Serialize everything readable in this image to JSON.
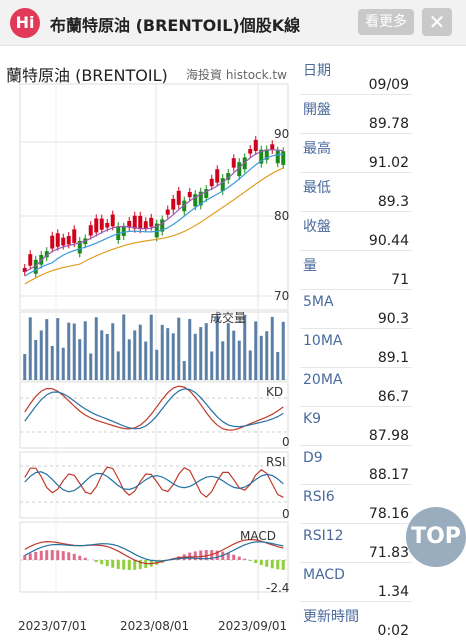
{
  "header": {
    "logo_text": "Hi",
    "title": "布蘭特原油 (BRENTOIL)個股K線",
    "more_label": "看更多",
    "close_label": "✕"
  },
  "chart": {
    "title": "蘭特原油 (BRENTOIL)",
    "watermark": "海投資 histock.tw",
    "price_ticks": [
      "90",
      "80",
      "70"
    ],
    "volume_label": "成交量",
    "kd_label": "KD",
    "kd_zero": "0",
    "rsi_label": "RSI",
    "rsi_zero": "0",
    "macd_label": "MACD",
    "macd_min": "-2.4",
    "x_ticks": [
      "2023/07/01",
      "2023/08/01",
      "2023/09/01"
    ],
    "colors": {
      "up": "#d0021b",
      "down": "#1a8a1a",
      "ma5": "#9b59b6",
      "ma10": "#3b9bd9",
      "ma20": "#e0a020",
      "volume": "#5b7fa6"
    }
  },
  "info": [
    {
      "label": "日期",
      "value": "09/09"
    },
    {
      "label": "開盤",
      "value": "89.78"
    },
    {
      "label": "最高",
      "value": "91.02"
    },
    {
      "label": "最低",
      "value": "89.3"
    },
    {
      "label": "收盤",
      "value": "90.44"
    },
    {
      "label": "量",
      "value": "71"
    },
    {
      "label": "5MA",
      "value": "90.3"
    },
    {
      "label": "10MA",
      "value": "89.1"
    },
    {
      "label": "20MA",
      "value": "86.7"
    },
    {
      "label": "K9",
      "value": "87.98"
    },
    {
      "label": "D9",
      "value": "88.17"
    },
    {
      "label": "RSI6",
      "value": "78.16"
    },
    {
      "label": "RSI12",
      "value": "71.83"
    },
    {
      "label": "MACD",
      "value": "1.34"
    },
    {
      "label": "更新時間",
      "value": "0:02"
    }
  ],
  "top_button": "TOP"
}
